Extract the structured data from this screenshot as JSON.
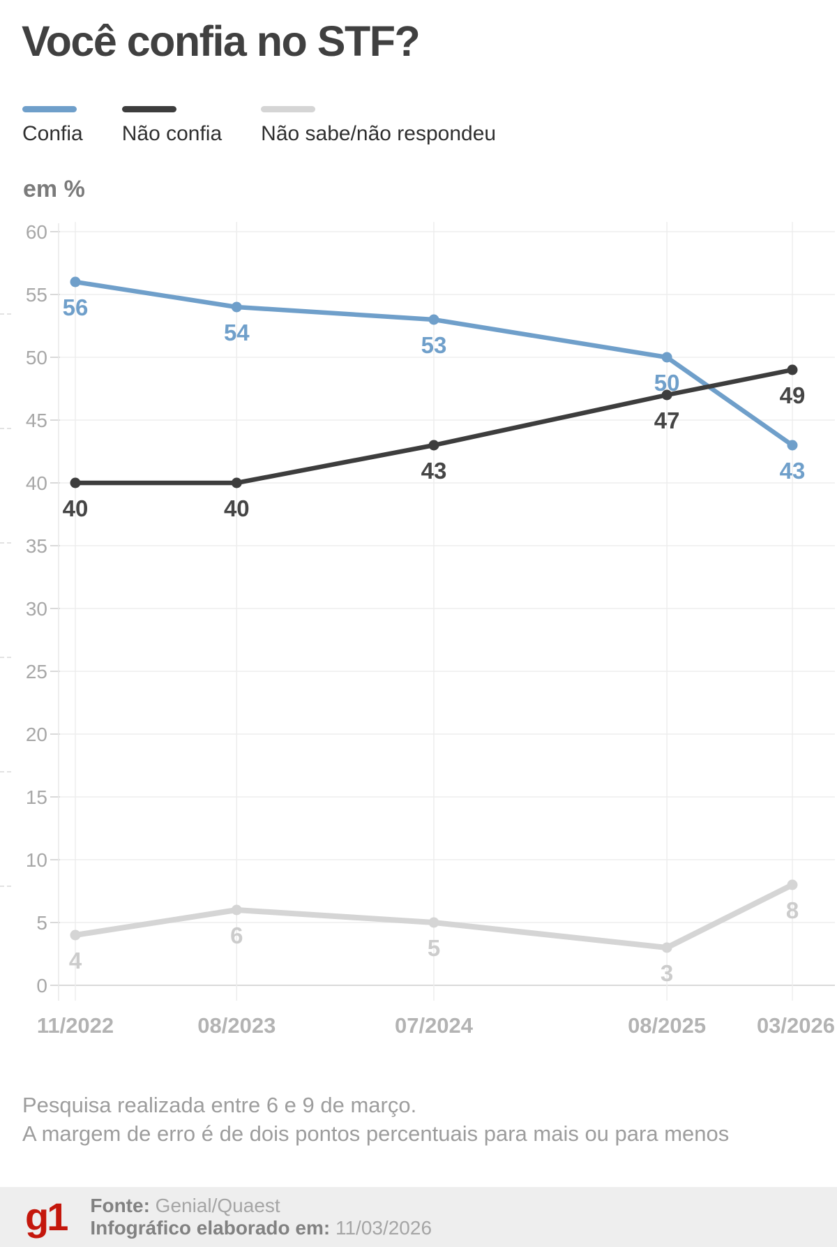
{
  "title": "Você confia no STF?",
  "unit_label": "em %",
  "legend": [
    {
      "label": "Confia",
      "color": "#6f9fca"
    },
    {
      "label": "Não confia",
      "color": "#3d3d3d"
    },
    {
      "label": "Não sabe/não respondeu",
      "color": "#d5d5d5"
    }
  ],
  "chart_data": {
    "type": "line",
    "x": [
      "11/2022",
      "08/2023",
      "07/2024",
      "08/2025",
      "03/2026"
    ],
    "x_months_offset": [
      0,
      9,
      20,
      33,
      40
    ],
    "series": [
      {
        "name": "Confia",
        "color": "#6f9fca",
        "label_color": "#6f9fca",
        "values": [
          56,
          54,
          53,
          50,
          43
        ]
      },
      {
        "name": "Não sabe/não respondeu",
        "color": "#d5d5d5",
        "label_color": "#cccccc",
        "values": [
          4,
          6,
          5,
          3,
          8
        ]
      },
      {
        "name": "Não confia",
        "color": "#3d3d3d",
        "label_color": "#454545",
        "values": [
          40,
          40,
          43,
          47,
          49
        ]
      }
    ],
    "ylim": [
      0,
      60
    ],
    "ytick_step": 5,
    "grid": true,
    "legend_position": "top",
    "ylabel": "em %"
  },
  "notes": [
    "Pesquisa realizada entre 6 e 9 de março.",
    "A margem de erro é de dois pontos percentuais para mais ou para menos"
  ],
  "footer": {
    "logo": "g1",
    "source_label": "Fonte:",
    "source": "Genial/Quaest",
    "made_label": "Infográfico elaborado em:",
    "date": "11/03/2026"
  }
}
